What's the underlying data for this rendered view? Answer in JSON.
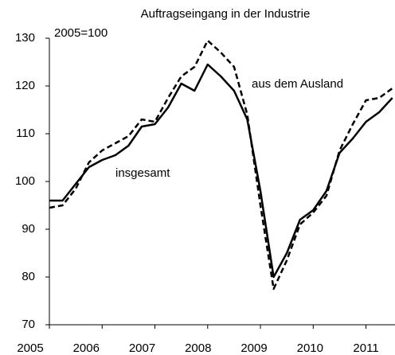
{
  "chart_data": {
    "type": "line",
    "title": "Auftragseingang in der Industrie",
    "subtitle": "2005=100",
    "annotations": [
      "aus dem Ausland",
      "insgesamt"
    ],
    "x": [
      2005.0,
      2005.25,
      2005.5,
      2005.75,
      2006.0,
      2006.25,
      2006.5,
      2006.75,
      2007.0,
      2007.25,
      2007.5,
      2007.75,
      2008.0,
      2008.25,
      2008.5,
      2008.75,
      2009.0,
      2009.25,
      2009.5,
      2009.75,
      2010.0,
      2010.25,
      2010.5,
      2010.75,
      2011.0,
      2011.25,
      2011.5
    ],
    "series": [
      {
        "name": "insgesamt",
        "color": "#000000",
        "dash": false,
        "values": [
          96,
          96,
          99.5,
          103,
          104.5,
          105.5,
          107.5,
          111.5,
          112,
          115.5,
          120.5,
          119,
          124.5,
          122,
          119,
          113,
          98,
          80,
          85,
          92,
          94,
          98,
          106,
          109,
          112.5,
          114.5,
          117.5
        ]
      },
      {
        "name": "aus dem Ausland",
        "color": "#000000",
        "dash": true,
        "values": [
          94.5,
          95,
          98.5,
          104,
          106.5,
          108,
          109.5,
          113,
          112.5,
          117.5,
          122,
          124,
          129.5,
          127,
          124,
          114,
          95,
          77.5,
          83.5,
          91,
          93.5,
          97,
          106.5,
          112,
          117,
          117.5,
          119.5
        ]
      }
    ],
    "xlim": [
      2005,
      2011.55
    ],
    "xticks": [
      2005,
      2006,
      2007,
      2008,
      2009,
      2010,
      2011
    ],
    "ylim": [
      70,
      130
    ],
    "yticks": [
      70,
      80,
      90,
      100,
      110,
      120,
      130
    ],
    "grid": false
  }
}
